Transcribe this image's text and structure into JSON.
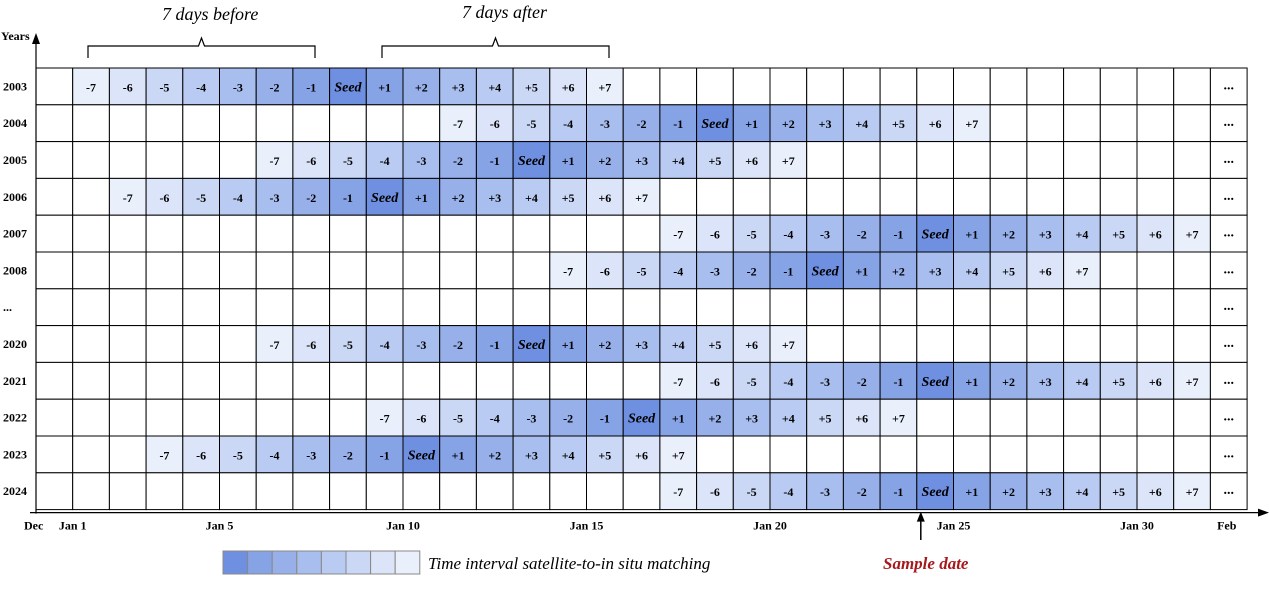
{
  "axis": {
    "y_title": "Years",
    "x_start": "Dec",
    "x_end": "Feb",
    "x_ticks": [
      "Jan 1",
      "Jan 5",
      "Jan 10",
      "Jan 15",
      "Jan 20",
      "Jan 25",
      "Jan 30"
    ],
    "x_tick_days": [
      1,
      5,
      10,
      15,
      20,
      25,
      30
    ]
  },
  "header": {
    "before_label": "7 days before",
    "after_label": "7 days after"
  },
  "grid": {
    "days": 31,
    "ellipsis": "...",
    "seed_label": "Seed",
    "offset_labels": [
      "-7",
      "-6",
      "-5",
      "-4",
      "-3",
      "-2",
      "-1",
      "",
      "+1",
      "+2",
      "+3",
      "+4",
      "+5",
      "+6",
      "+7"
    ],
    "rows": [
      {
        "year": "2003",
        "seed_day": 8
      },
      {
        "year": "2004",
        "seed_day": 18
      },
      {
        "year": "2005",
        "seed_day": 13
      },
      {
        "year": "2006",
        "seed_day": 9
      },
      {
        "year": "2007",
        "seed_day": 24
      },
      {
        "year": "2008",
        "seed_day": 21
      },
      {
        "year": "...",
        "seed_day": null
      },
      {
        "year": "2020",
        "seed_day": 13
      },
      {
        "year": "2021",
        "seed_day": 24
      },
      {
        "year": "2022",
        "seed_day": 16
      },
      {
        "year": "2023",
        "seed_day": 10
      },
      {
        "year": "2024",
        "seed_day": 24
      }
    ]
  },
  "colors": {
    "seed": "#6f8fe0",
    "gradient": [
      "#86a3e6",
      "#97b0ea",
      "#a8beee",
      "#b9cbf2",
      "#cad8f5",
      "#dbe4f8",
      "#eaf0fb"
    ],
    "grid_line": "#000000",
    "sample_text": "#a5191c"
  },
  "legend": {
    "label": "Time  interval satellite-to-in situ matching",
    "swatches": [
      "#6f8fe0",
      "#86a3e6",
      "#97b0ea",
      "#a8beee",
      "#b9cbf2",
      "#cad8f5",
      "#dbe4f8",
      "#eaf0fb"
    ]
  },
  "annotation": {
    "sample_label": "Sample date",
    "sample_day": 24
  }
}
